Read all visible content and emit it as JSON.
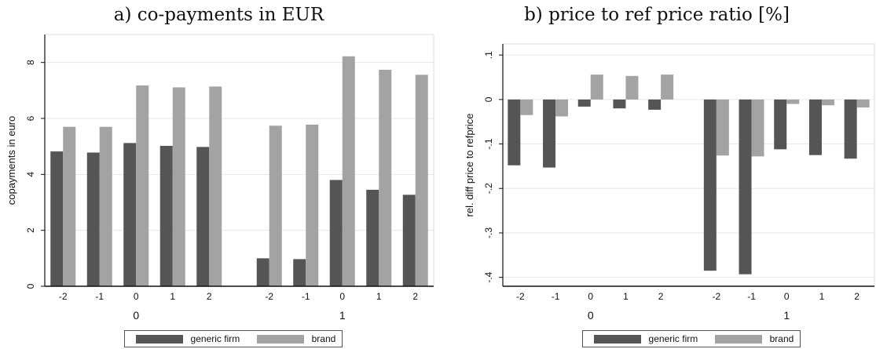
{
  "chart_data": [
    {
      "id": "a",
      "type": "bar",
      "title": "a) co-payments in EUR",
      "ylabel": "copayments in euro",
      "ylim": [
        0,
        9
      ],
      "yticks": [
        0,
        2,
        4,
        6,
        8
      ],
      "ytick_labels": [
        "0",
        "2",
        "4",
        "6",
        "8"
      ],
      "grid": true,
      "groups": [
        "0",
        "1"
      ],
      "categories": [
        "-2",
        "-1",
        "0",
        "1",
        "2"
      ],
      "series": [
        {
          "name": "generic firm",
          "color": "#555555",
          "values": [
            [
              4.82,
              4.78,
              5.12,
              5.02,
              4.98
            ],
            [
              1.0,
              0.97,
              3.8,
              3.45,
              3.27
            ]
          ]
        },
        {
          "name": "brand",
          "color": "#a3a3a3",
          "values": [
            [
              5.7,
              5.7,
              7.18,
              7.11,
              7.14
            ],
            [
              5.74,
              5.78,
              8.22,
              7.74,
              7.56
            ]
          ]
        }
      ],
      "legend_position": "bottom"
    },
    {
      "id": "b",
      "type": "bar",
      "title": "b) price to ref price ratio [%]",
      "ylabel": "rel. diff price to refprice",
      "ylim": [
        -0.42,
        0.125
      ],
      "yticks": [
        -0.4,
        -0.3,
        -0.2,
        -0.1,
        0,
        0.1
      ],
      "ytick_labels": [
        "-.4",
        "-.3",
        "-.2",
        "-.1",
        "0",
        ".1"
      ],
      "grid": true,
      "groups": [
        "0",
        "1"
      ],
      "categories": [
        "-2",
        "-1",
        "0",
        "1",
        "2"
      ],
      "series": [
        {
          "name": "generic firm",
          "color": "#555555",
          "values": [
            [
              -0.148,
              -0.153,
              -0.016,
              -0.02,
              -0.023
            ],
            [
              -0.385,
              -0.393,
              -0.112,
              -0.125,
              -0.133
            ]
          ]
        },
        {
          "name": "brand",
          "color": "#a3a3a3",
          "values": [
            [
              -0.035,
              -0.038,
              0.056,
              0.053,
              0.056
            ],
            [
              -0.126,
              -0.128,
              -0.01,
              -0.013,
              -0.018
            ]
          ]
        }
      ],
      "legend_position": "bottom"
    }
  ]
}
